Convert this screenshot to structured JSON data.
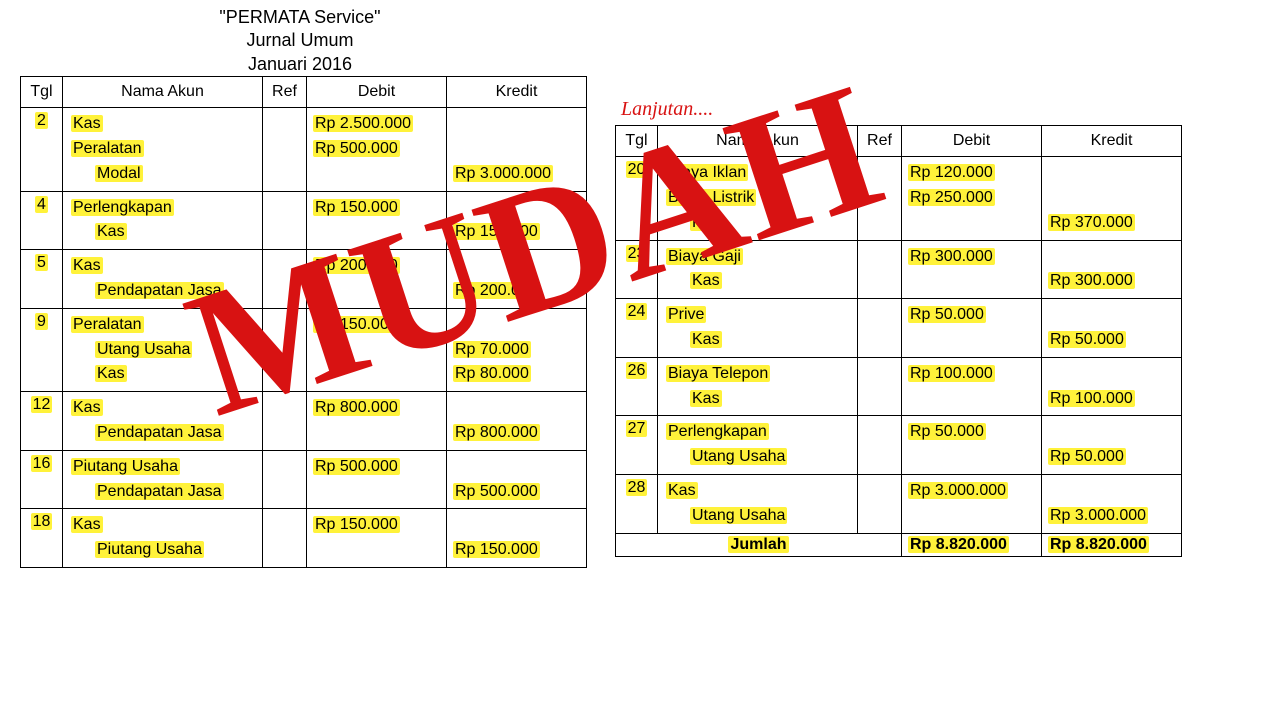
{
  "meta": {
    "overlay_text": "MUDAH",
    "highlight_color": "#fff23a",
    "overlay_color": "#d81212",
    "border_color": "#000000",
    "background_color": "#ffffff",
    "font_family": "Comic Sans MS",
    "font_size_body": 16,
    "font_size_header": 18
  },
  "header": {
    "line1": "\"PERMATA Service\"",
    "line2": "Jurnal Umum",
    "line3": "Januari 2016"
  },
  "columns": {
    "tgl": "Tgl",
    "akun": "Nama Akun",
    "ref": "Ref",
    "debit": "Debit",
    "kredit": "Kredit"
  },
  "lanjutan_label": "Lanjutan....",
  "left_entries": [
    {
      "tgl": "2",
      "lines": [
        {
          "label": "Kas",
          "indent": 1,
          "debit": "Rp 2.500.000"
        },
        {
          "label": "Peralatan",
          "indent": 1,
          "debit": "Rp 500.000"
        },
        {
          "label": "Modal",
          "indent": 2,
          "kredit": "Rp 3.000.000"
        }
      ]
    },
    {
      "tgl": "4",
      "lines": [
        {
          "label": "Perlengkapan",
          "indent": 1,
          "debit": "Rp 150.000"
        },
        {
          "label": "Kas",
          "indent": 2,
          "kredit": "Rp 150.000"
        }
      ]
    },
    {
      "tgl": "5",
      "lines": [
        {
          "label": "Kas",
          "indent": 1,
          "debit": "Rp 200.000"
        },
        {
          "label": "Pendapatan Jasa",
          "indent": 2,
          "kredit": "Rp 200.000"
        }
      ]
    },
    {
      "tgl": "9",
      "lines": [
        {
          "label": "Peralatan",
          "indent": 1,
          "debit": "Rp 150.000"
        },
        {
          "label": "Utang Usaha",
          "indent": 2,
          "kredit": "Rp 70.000"
        },
        {
          "label": "Kas",
          "indent": 2,
          "kredit": "Rp 80.000"
        }
      ]
    },
    {
      "tgl": "12",
      "lines": [
        {
          "label": "Kas",
          "indent": 1,
          "debit": "Rp 800.000"
        },
        {
          "label": "Pendapatan Jasa",
          "indent": 2,
          "kredit": "Rp 800.000"
        }
      ]
    },
    {
      "tgl": "16",
      "lines": [
        {
          "label": "Piutang Usaha",
          "indent": 1,
          "debit": "Rp 500.000"
        },
        {
          "label": "Pendapatan Jasa",
          "indent": 2,
          "kredit": "Rp 500.000"
        }
      ]
    },
    {
      "tgl": "18",
      "lines": [
        {
          "label": "Kas",
          "indent": 1,
          "debit": "Rp 150.000"
        },
        {
          "label": "Piutang Usaha",
          "indent": 2,
          "kredit": "Rp 150.000"
        }
      ]
    }
  ],
  "right_entries": [
    {
      "tgl": "20",
      "lines": [
        {
          "label": "Biaya Iklan",
          "indent": 1,
          "debit": "Rp 120.000"
        },
        {
          "label": "Biaya Listrik",
          "indent": 1,
          "debit": "Rp 250.000"
        },
        {
          "label": "Kas",
          "indent": 2,
          "kredit": "Rp 370.000"
        }
      ]
    },
    {
      "tgl": "23",
      "lines": [
        {
          "label": "Biaya Gaji",
          "indent": 1,
          "debit": "Rp 300.000"
        },
        {
          "label": "Kas",
          "indent": 2,
          "kredit": "Rp 300.000"
        }
      ]
    },
    {
      "tgl": "24",
      "lines": [
        {
          "label": "Prive",
          "indent": 1,
          "debit": "Rp 50.000"
        },
        {
          "label": "Kas",
          "indent": 2,
          "kredit": "Rp 50.000"
        }
      ]
    },
    {
      "tgl": "26",
      "lines": [
        {
          "label": "Biaya Telepon",
          "indent": 1,
          "debit": "Rp 100.000"
        },
        {
          "label": "Kas",
          "indent": 2,
          "kredit": "Rp 100.000"
        }
      ]
    },
    {
      "tgl": "27",
      "lines": [
        {
          "label": "Perlengkapan",
          "indent": 1,
          "debit": "Rp 50.000"
        },
        {
          "label": "Utang Usaha",
          "indent": 2,
          "kredit": "Rp 50.000"
        }
      ]
    },
    {
      "tgl": "28",
      "lines": [
        {
          "label": "Kas",
          "indent": 1,
          "debit": "Rp 3.000.000"
        },
        {
          "label": "Utang Usaha",
          "indent": 2,
          "kredit": "Rp 3.000.000"
        }
      ]
    }
  ],
  "totals": {
    "label": "Jumlah",
    "debit": "Rp 8.820.000",
    "kredit": "Rp 8.820.000"
  }
}
